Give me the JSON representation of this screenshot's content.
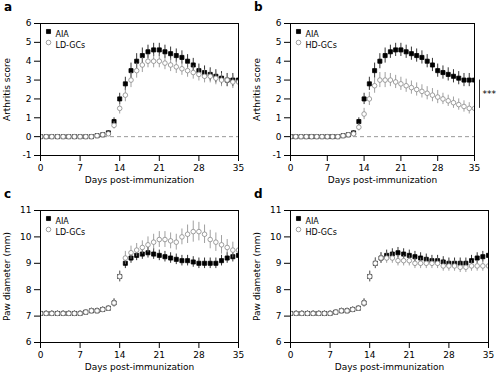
{
  "chart_data": [
    {
      "type": "scatter",
      "title": "a",
      "x_label": "Days post-immunization",
      "y_label": "Arthritis score",
      "x": [
        0,
        1,
        2,
        3,
        4,
        5,
        6,
        7,
        8,
        9,
        10,
        11,
        12,
        13,
        14,
        15,
        16,
        17,
        18,
        19,
        20,
        21,
        22,
        23,
        24,
        25,
        26,
        27,
        28,
        29,
        30,
        31,
        32,
        33,
        34,
        35
      ],
      "xlim": [
        0,
        35
      ],
      "xticks": [
        0,
        7,
        14,
        21,
        28,
        35
      ],
      "ylim": [
        -1,
        6
      ],
      "yticks": [
        -1,
        0,
        1,
        2,
        3,
        4,
        5,
        6
      ],
      "grid": false,
      "legend": "upper left",
      "series": [
        {
          "name": "AIA",
          "color": "#000000",
          "marker": "square",
          "values": [
            0,
            0,
            0,
            0,
            0,
            0,
            0,
            0,
            0,
            0,
            0.05,
            0.1,
            0.2,
            0.8,
            2.0,
            2.8,
            3.5,
            4.0,
            4.3,
            4.5,
            4.6,
            4.6,
            4.5,
            4.4,
            4.3,
            4.2,
            4.0,
            3.8,
            3.5,
            3.4,
            3.3,
            3.2,
            3.1,
            3.0,
            3.0,
            3.0
          ],
          "errors": [
            0,
            0,
            0,
            0,
            0,
            0,
            0,
            0,
            0,
            0,
            0.05,
            0.08,
            0.1,
            0.2,
            0.3,
            0.35,
            0.4,
            0.4,
            0.4,
            0.35,
            0.35,
            0.35,
            0.35,
            0.35,
            0.35,
            0.35,
            0.35,
            0.35,
            0.35,
            0.35,
            0.35,
            0.35,
            0.35,
            0.35,
            0.35,
            0.35
          ]
        },
        {
          "name": "LD-GCs",
          "color": "#888888",
          "marker": "open_circle",
          "values": [
            0,
            0,
            0,
            0,
            0,
            0,
            0,
            0,
            0,
            0,
            0.05,
            0.1,
            0.15,
            0.6,
            1.5,
            2.2,
            3.0,
            3.5,
            3.8,
            4.0,
            4.0,
            4.0,
            3.9,
            3.8,
            3.7,
            3.6,
            3.5,
            3.4,
            3.3,
            3.2,
            3.2,
            3.1,
            3.0,
            3.0,
            2.9,
            2.9
          ],
          "errors": [
            0,
            0,
            0,
            0,
            0,
            0,
            0,
            0,
            0,
            0,
            0.05,
            0.08,
            0.1,
            0.2,
            0.3,
            0.35,
            0.4,
            0.4,
            0.4,
            0.35,
            0.35,
            0.35,
            0.35,
            0.35,
            0.35,
            0.35,
            0.35,
            0.35,
            0.35,
            0.35,
            0.35,
            0.35,
            0.35,
            0.35,
            0.35,
            0.35
          ]
        }
      ],
      "annotations": [
        {
          "type": "hline",
          "y": 0,
          "line_style": "dashed",
          "color": "#808080"
        }
      ]
    },
    {
      "type": "scatter",
      "title": "b",
      "x_label": "Days post-immunization",
      "y_label": "Arthritis score",
      "x": [
        0,
        1,
        2,
        3,
        4,
        5,
        6,
        7,
        8,
        9,
        10,
        11,
        12,
        13,
        14,
        15,
        16,
        17,
        18,
        19,
        20,
        21,
        22,
        23,
        24,
        25,
        26,
        27,
        28,
        29,
        30,
        31,
        32,
        33,
        34,
        35
      ],
      "xlim": [
        0,
        35
      ],
      "xticks": [
        0,
        7,
        14,
        21,
        28,
        35
      ],
      "ylim": [
        -1,
        6
      ],
      "yticks": [
        -1,
        0,
        1,
        2,
        3,
        4,
        5,
        6
      ],
      "grid": false,
      "legend": "upper left",
      "series": [
        {
          "name": "AIA",
          "color": "#000000",
          "marker": "square",
          "values": [
            0,
            0,
            0,
            0,
            0,
            0,
            0,
            0,
            0,
            0,
            0.05,
            0.1,
            0.2,
            0.8,
            2.0,
            2.8,
            3.5,
            4.0,
            4.3,
            4.5,
            4.6,
            4.6,
            4.5,
            4.4,
            4.3,
            4.2,
            4.0,
            3.8,
            3.5,
            3.4,
            3.3,
            3.2,
            3.1,
            3.0,
            3.0,
            3.0
          ],
          "errors": [
            0,
            0,
            0,
            0,
            0,
            0,
            0,
            0,
            0,
            0,
            0.05,
            0.08,
            0.1,
            0.2,
            0.3,
            0.35,
            0.4,
            0.4,
            0.4,
            0.35,
            0.35,
            0.35,
            0.35,
            0.35,
            0.35,
            0.35,
            0.35,
            0.35,
            0.35,
            0.35,
            0.35,
            0.35,
            0.35,
            0.35,
            0.35,
            0.35
          ]
        },
        {
          "name": "HD-GCs",
          "color": "#888888",
          "marker": "open_circle",
          "values": [
            0,
            0,
            0,
            0,
            0,
            0,
            0,
            0,
            0,
            0,
            0.05,
            0.1,
            0.15,
            0.5,
            1.2,
            2.0,
            2.7,
            3.0,
            3.0,
            3.0,
            2.9,
            2.8,
            2.7,
            2.6,
            2.5,
            2.4,
            2.3,
            2.2,
            2.1,
            2.0,
            1.9,
            1.8,
            1.7,
            1.6,
            1.5,
            1.5
          ],
          "errors": [
            0,
            0,
            0,
            0,
            0,
            0,
            0,
            0,
            0,
            0,
            0.05,
            0.08,
            0.1,
            0.2,
            0.3,
            0.35,
            0.4,
            0.4,
            0.4,
            0.35,
            0.35,
            0.35,
            0.35,
            0.35,
            0.35,
            0.35,
            0.35,
            0.35,
            0.35,
            0.3,
            0.3,
            0.3,
            0.3,
            0.3,
            0.3,
            0.3
          ]
        }
      ],
      "annotations": [
        {
          "type": "hline",
          "y": 0,
          "line_style": "dashed",
          "color": "#808080"
        },
        {
          "type": "bracket",
          "text": "***"
        }
      ]
    },
    {
      "type": "scatter",
      "title": "c",
      "x_label": "Days post-immunization",
      "y_label": "Paw diameter (mm)",
      "x": [
        0,
        1,
        2,
        3,
        4,
        5,
        6,
        7,
        8,
        9,
        10,
        11,
        12,
        13,
        14,
        15,
        16,
        17,
        18,
        19,
        20,
        21,
        22,
        23,
        24,
        25,
        26,
        27,
        28,
        29,
        30,
        31,
        32,
        33,
        34,
        35
      ],
      "xlim": [
        0,
        35
      ],
      "xticks": [
        0,
        7,
        14,
        21,
        28,
        35
      ],
      "ylim": [
        6,
        11
      ],
      "yticks": [
        6,
        7,
        8,
        9,
        10,
        11
      ],
      "grid": false,
      "legend": "upper left",
      "series": [
        {
          "name": "AIA",
          "color": "#000000",
          "marker": "square",
          "values": [
            7.1,
            7.1,
            7.1,
            7.1,
            7.1,
            7.1,
            7.1,
            7.1,
            7.15,
            7.2,
            7.2,
            7.25,
            7.3,
            7.5,
            8.5,
            9.0,
            9.2,
            9.3,
            9.35,
            9.4,
            9.35,
            9.3,
            9.25,
            9.2,
            9.15,
            9.1,
            9.1,
            9.05,
            9.0,
            9.0,
            9.0,
            9.0,
            9.1,
            9.2,
            9.25,
            9.3
          ],
          "errors": [
            0.1,
            0.1,
            0.1,
            0.1,
            0.1,
            0.1,
            0.1,
            0.1,
            0.1,
            0.1,
            0.1,
            0.1,
            0.1,
            0.15,
            0.2,
            0.2,
            0.2,
            0.2,
            0.2,
            0.2,
            0.2,
            0.2,
            0.2,
            0.2,
            0.2,
            0.2,
            0.2,
            0.2,
            0.2,
            0.2,
            0.2,
            0.2,
            0.2,
            0.2,
            0.2,
            0.2
          ]
        },
        {
          "name": "LD-GCs",
          "color": "#888888",
          "marker": "open_circle",
          "values": [
            7.1,
            7.1,
            7.1,
            7.1,
            7.1,
            7.1,
            7.1,
            7.1,
            7.15,
            7.2,
            7.2,
            7.25,
            7.3,
            7.5,
            8.5,
            9.2,
            9.4,
            9.5,
            9.6,
            9.7,
            9.8,
            9.9,
            9.9,
            9.85,
            9.8,
            10.0,
            10.1,
            10.2,
            10.2,
            10.1,
            9.9,
            9.8,
            9.7,
            9.6,
            9.5,
            9.5
          ],
          "errors": [
            0.1,
            0.1,
            0.1,
            0.1,
            0.1,
            0.1,
            0.1,
            0.1,
            0.1,
            0.1,
            0.1,
            0.1,
            0.1,
            0.15,
            0.2,
            0.25,
            0.25,
            0.25,
            0.25,
            0.3,
            0.3,
            0.3,
            0.3,
            0.3,
            0.3,
            0.3,
            0.35,
            0.4,
            0.35,
            0.35,
            0.35,
            0.35,
            0.35,
            0.3,
            0.3,
            0.3
          ]
        }
      ]
    },
    {
      "type": "scatter",
      "title": "d",
      "x_label": "Days post-immunization",
      "y_label": "Paw diameter (mm)",
      "x": [
        0,
        1,
        2,
        3,
        4,
        5,
        6,
        7,
        8,
        9,
        10,
        11,
        12,
        13,
        14,
        15,
        16,
        17,
        18,
        19,
        20,
        21,
        22,
        23,
        24,
        25,
        26,
        27,
        28,
        29,
        30,
        31,
        32,
        33,
        34,
        35
      ],
      "xlim": [
        0,
        35
      ],
      "xticks": [
        0,
        7,
        14,
        21,
        28,
        35
      ],
      "ylim": [
        6,
        11
      ],
      "yticks": [
        6,
        7,
        8,
        9,
        10,
        11
      ],
      "grid": false,
      "legend": "upper left",
      "series": [
        {
          "name": "AIA",
          "color": "#000000",
          "marker": "square",
          "values": [
            7.1,
            7.1,
            7.1,
            7.1,
            7.1,
            7.1,
            7.1,
            7.1,
            7.15,
            7.2,
            7.2,
            7.25,
            7.3,
            7.5,
            8.5,
            9.0,
            9.2,
            9.3,
            9.35,
            9.4,
            9.35,
            9.3,
            9.25,
            9.2,
            9.15,
            9.1,
            9.1,
            9.05,
            9.0,
            9.0,
            9.0,
            9.0,
            9.1,
            9.2,
            9.25,
            9.3
          ],
          "errors": [
            0.1,
            0.1,
            0.1,
            0.1,
            0.1,
            0.1,
            0.1,
            0.1,
            0.1,
            0.1,
            0.1,
            0.1,
            0.1,
            0.15,
            0.2,
            0.2,
            0.2,
            0.2,
            0.2,
            0.2,
            0.2,
            0.2,
            0.2,
            0.2,
            0.2,
            0.2,
            0.2,
            0.2,
            0.2,
            0.2,
            0.2,
            0.2,
            0.2,
            0.2,
            0.2,
            0.2
          ]
        },
        {
          "name": "HD-GCs",
          "color": "#888888",
          "marker": "open_circle",
          "values": [
            7.1,
            7.1,
            7.1,
            7.1,
            7.1,
            7.1,
            7.1,
            7.1,
            7.15,
            7.2,
            7.2,
            7.25,
            7.3,
            7.5,
            8.5,
            9.0,
            9.2,
            9.2,
            9.2,
            9.1,
            9.1,
            9.1,
            9.0,
            9.0,
            9.0,
            9.0,
            9.0,
            8.9,
            8.9,
            8.9,
            8.85,
            8.85,
            8.9,
            8.9,
            8.9,
            8.9
          ],
          "errors": [
            0.1,
            0.1,
            0.1,
            0.1,
            0.1,
            0.1,
            0.1,
            0.1,
            0.1,
            0.1,
            0.1,
            0.1,
            0.1,
            0.15,
            0.2,
            0.2,
            0.2,
            0.2,
            0.2,
            0.2,
            0.2,
            0.2,
            0.2,
            0.2,
            0.2,
            0.2,
            0.2,
            0.2,
            0.2,
            0.2,
            0.2,
            0.2,
            0.2,
            0.2,
            0.2,
            0.2
          ]
        }
      ]
    }
  ]
}
